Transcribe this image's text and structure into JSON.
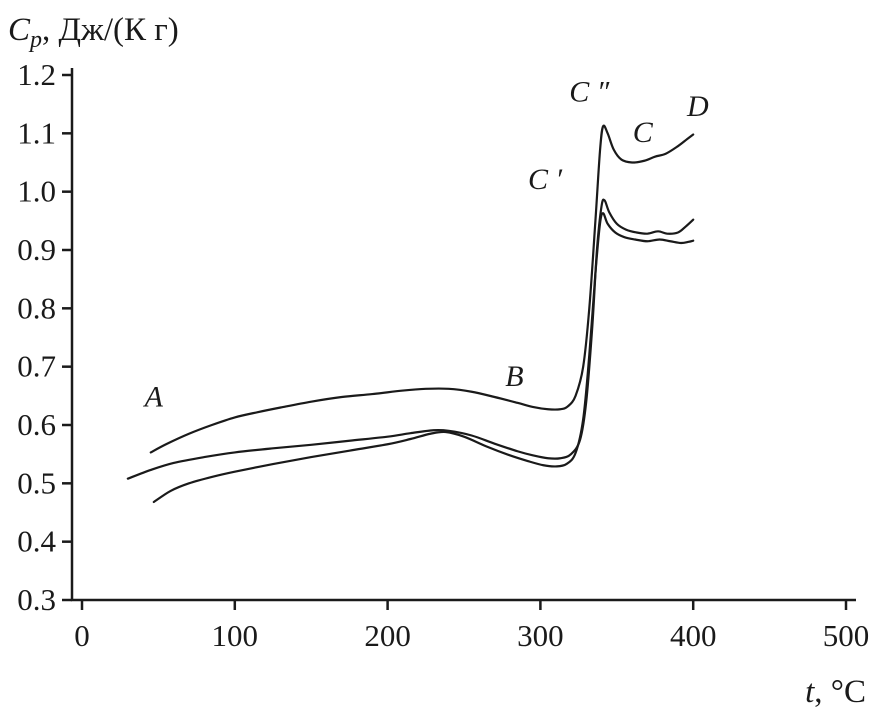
{
  "chart_data": {
    "type": "line",
    "title": "",
    "ylabel": {
      "symbol": "C",
      "subscript": "p",
      "rest": ", Дж/(К г)"
    },
    "xlabel": {
      "symbol": "t",
      "rest": ", °C"
    },
    "xlim": [
      0,
      500
    ],
    "ylim": [
      0.3,
      1.2
    ],
    "x_ticks": [
      0,
      100,
      200,
      300,
      400,
      500
    ],
    "y_ticks": [
      0.3,
      0.4,
      0.5,
      0.6,
      0.7,
      0.8,
      0.9,
      1.0,
      1.1,
      1.2
    ],
    "grid": false,
    "legend": false,
    "axis_color": "#1a1a1a",
    "line_color": "#1a1a1a",
    "series": [
      {
        "name": "curve-top-ABCD",
        "points": [
          [
            45,
            0.553
          ],
          [
            55,
            0.567
          ],
          [
            70,
            0.585
          ],
          [
            85,
            0.6
          ],
          [
            100,
            0.613
          ],
          [
            115,
            0.622
          ],
          [
            130,
            0.63
          ],
          [
            150,
            0.64
          ],
          [
            170,
            0.648
          ],
          [
            190,
            0.653
          ],
          [
            210,
            0.659
          ],
          [
            225,
            0.662
          ],
          [
            240,
            0.662
          ],
          [
            255,
            0.657
          ],
          [
            270,
            0.648
          ],
          [
            285,
            0.638
          ],
          [
            295,
            0.631
          ],
          [
            305,
            0.627
          ],
          [
            313,
            0.627
          ],
          [
            318,
            0.632
          ],
          [
            323,
            0.65
          ],
          [
            328,
            0.7
          ],
          [
            332,
            0.8
          ],
          [
            336,
            0.95
          ],
          [
            339,
            1.07
          ],
          [
            341,
            1.112
          ],
          [
            344,
            1.1
          ],
          [
            348,
            1.072
          ],
          [
            353,
            1.055
          ],
          [
            360,
            1.05
          ],
          [
            368,
            1.053
          ],
          [
            375,
            1.06
          ],
          [
            382,
            1.065
          ],
          [
            390,
            1.078
          ],
          [
            396,
            1.09
          ],
          [
            400,
            1.098
          ]
        ]
      },
      {
        "name": "curve-middle",
        "points": [
          [
            30,
            0.508
          ],
          [
            45,
            0.523
          ],
          [
            60,
            0.535
          ],
          [
            80,
            0.545
          ],
          [
            100,
            0.553
          ],
          [
            125,
            0.56
          ],
          [
            150,
            0.566
          ],
          [
            175,
            0.573
          ],
          [
            200,
            0.58
          ],
          [
            215,
            0.586
          ],
          [
            230,
            0.591
          ],
          [
            240,
            0.59
          ],
          [
            255,
            0.582
          ],
          [
            270,
            0.568
          ],
          [
            285,
            0.555
          ],
          [
            295,
            0.548
          ],
          [
            305,
            0.543
          ],
          [
            313,
            0.543
          ],
          [
            320,
            0.55
          ],
          [
            326,
            0.575
          ],
          [
            330,
            0.64
          ],
          [
            334,
            0.77
          ],
          [
            337,
            0.9
          ],
          [
            340,
            0.975
          ],
          [
            342,
            0.985
          ],
          [
            345,
            0.965
          ],
          [
            350,
            0.945
          ],
          [
            356,
            0.935
          ],
          [
            363,
            0.93
          ],
          [
            370,
            0.928
          ],
          [
            377,
            0.932
          ],
          [
            383,
            0.928
          ],
          [
            390,
            0.93
          ],
          [
            395,
            0.94
          ],
          [
            400,
            0.952
          ]
        ]
      },
      {
        "name": "curve-bottom",
        "points": [
          [
            47,
            0.468
          ],
          [
            58,
            0.487
          ],
          [
            70,
            0.5
          ],
          [
            85,
            0.511
          ],
          [
            100,
            0.52
          ],
          [
            125,
            0.533
          ],
          [
            150,
            0.545
          ],
          [
            175,
            0.556
          ],
          [
            200,
            0.567
          ],
          [
            215,
            0.576
          ],
          [
            228,
            0.585
          ],
          [
            238,
            0.588
          ],
          [
            250,
            0.58
          ],
          [
            265,
            0.563
          ],
          [
            280,
            0.548
          ],
          [
            292,
            0.538
          ],
          [
            302,
            0.531
          ],
          [
            310,
            0.529
          ],
          [
            317,
            0.533
          ],
          [
            323,
            0.552
          ],
          [
            328,
            0.61
          ],
          [
            332,
            0.72
          ],
          [
            336,
            0.86
          ],
          [
            339,
            0.945
          ],
          [
            341,
            0.963
          ],
          [
            344,
            0.945
          ],
          [
            349,
            0.93
          ],
          [
            355,
            0.922
          ],
          [
            362,
            0.918
          ],
          [
            370,
            0.915
          ],
          [
            378,
            0.918
          ],
          [
            385,
            0.915
          ],
          [
            392,
            0.912
          ],
          [
            397,
            0.914
          ],
          [
            400,
            0.916
          ]
        ]
      }
    ],
    "annotations": [
      {
        "name": "label-a",
        "label": "A",
        "x": 47,
        "y": 0.632
      },
      {
        "name": "label-b",
        "label": "B",
        "x": 283,
        "y": 0.667
      },
      {
        "name": "label-c-prime",
        "label": "C ′",
        "x": 303,
        "y": 1.005
      },
      {
        "name": "label-c-double-prime",
        "label": "C ″",
        "x": 332,
        "y": 1.155
      },
      {
        "name": "label-c",
        "label": "C",
        "x": 367,
        "y": 1.085
      },
      {
        "name": "label-d",
        "label": "D",
        "x": 403,
        "y": 1.13
      }
    ]
  }
}
